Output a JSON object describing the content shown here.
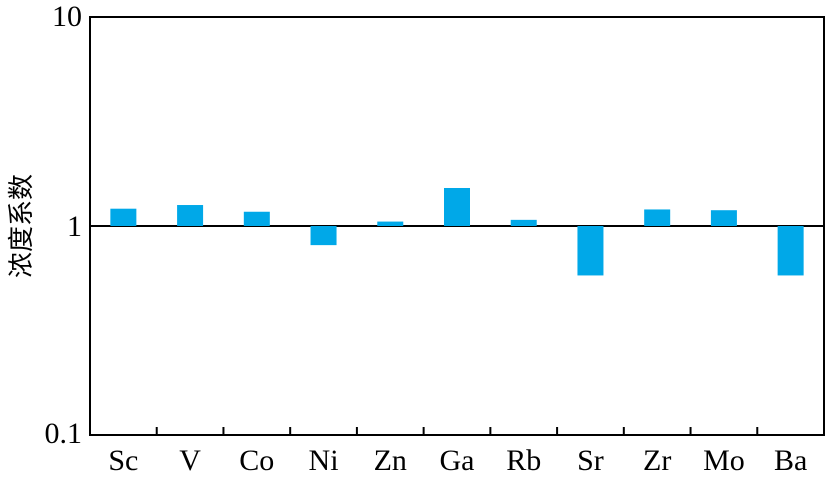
{
  "chart_data": {
    "type": "bar",
    "title": "",
    "xlabel": "",
    "ylabel": "浓度系数",
    "yscale": "log",
    "ylim": [
      0.1,
      10
    ],
    "baseline": 1,
    "yticks": [
      {
        "value": 10,
        "label": "10"
      },
      {
        "value": 1,
        "label": "1"
      },
      {
        "value": 0.1,
        "label": "0.1"
      }
    ],
    "categories": [
      "Sc",
      "V",
      "Co",
      "Ni",
      "Zn",
      "Ga",
      "Rb",
      "Sr",
      "Zr",
      "Mo",
      "Ba"
    ],
    "values": [
      1.21,
      1.26,
      1.17,
      0.81,
      1.05,
      1.52,
      1.07,
      0.58,
      1.2,
      1.19,
      0.58
    ],
    "bar_color": "#00a8e8",
    "grid": false,
    "legend": "none"
  }
}
